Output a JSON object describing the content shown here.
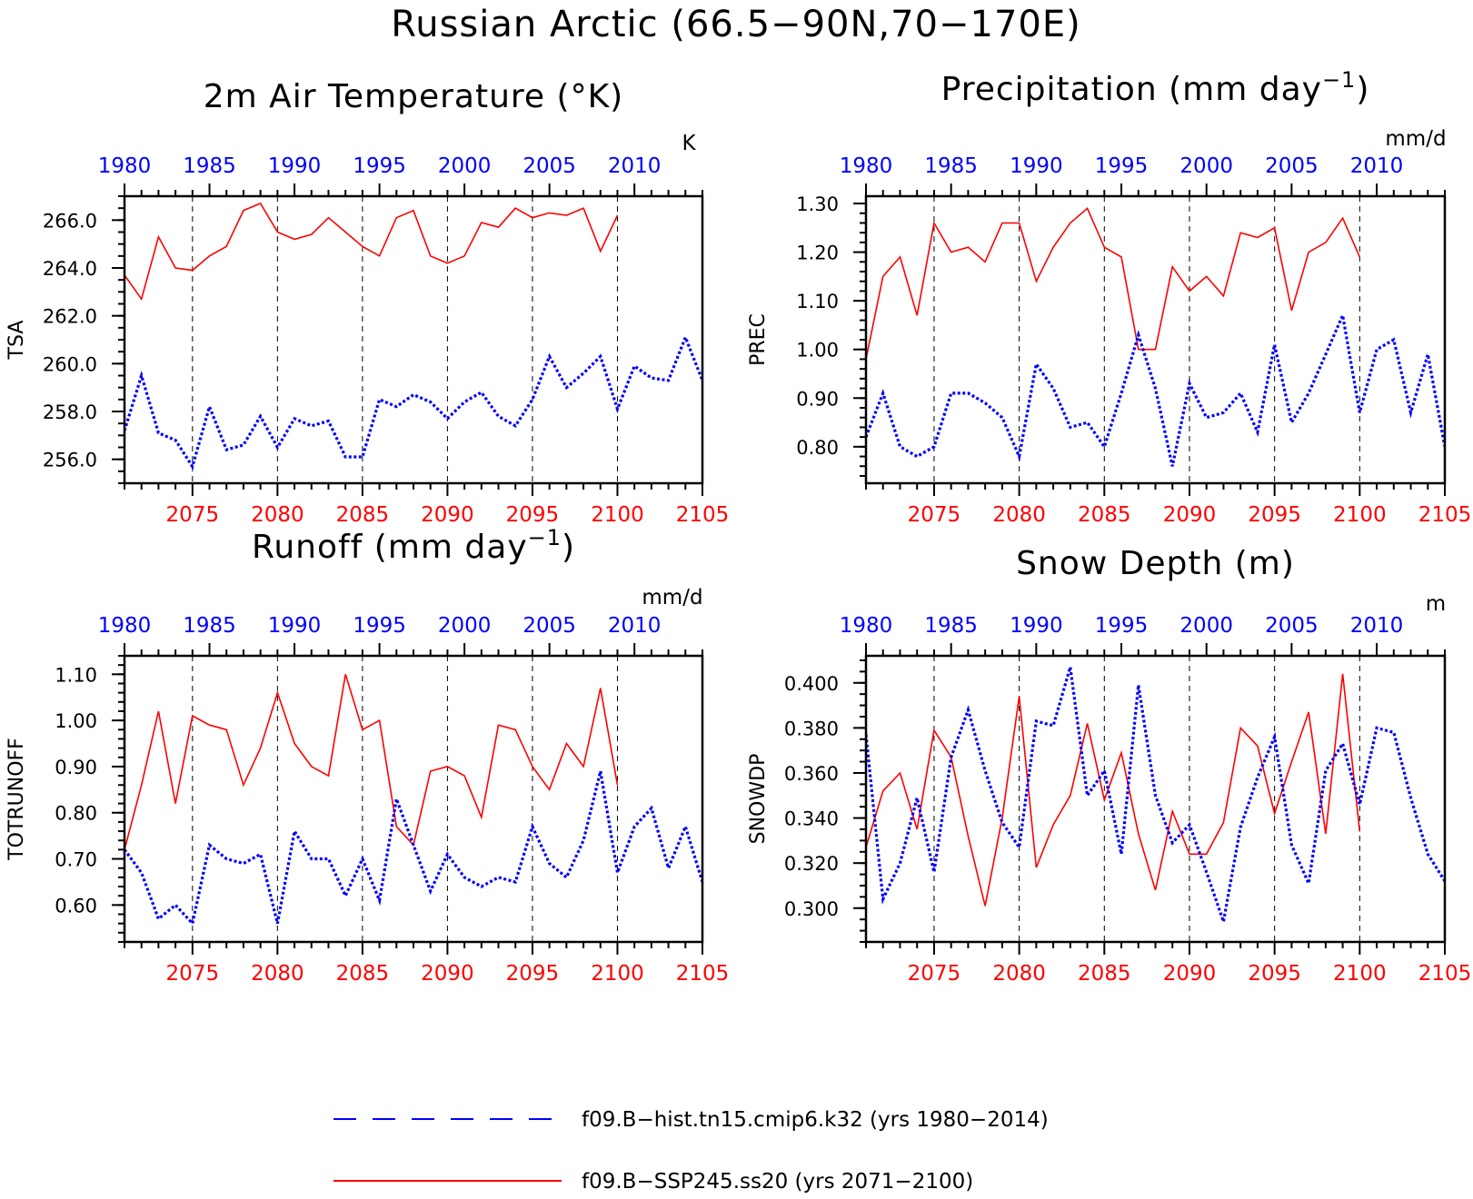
{
  "title": "Russian Arctic (66.5−90N,70−170E)",
  "legend": [
    {
      "label": "f09.B−hist.tn15.cmip6.k32 (yrs 1980−2014)",
      "color": "#0000ff",
      "style": "dashed"
    },
    {
      "label": "f09.B−SSP245.ss20 (yrs 2071−2100)",
      "color": "#ff0000",
      "style": "solid"
    }
  ],
  "colors": {
    "historical": "#0000ff",
    "future": "#ff0000"
  },
  "chart_data": [
    {
      "type": "line",
      "title": "2m Air Temperature (°K)",
      "ylabel": "TSA",
      "units": "K",
      "ylim": [
        255.0,
        267.0
      ],
      "yticks": [
        256.0,
        258.0,
        260.0,
        262.0,
        264.0,
        266.0
      ],
      "ytick_labels": [
        "256.0",
        "258.0",
        "260.0",
        "262.0",
        "264.0",
        "266.0"
      ],
      "minor_step": 0.5,
      "bottom_axis": {
        "range": [
          2071,
          2105
        ],
        "ticks": [
          2075,
          2080,
          2085,
          2090,
          2095,
          2100,
          2105
        ]
      },
      "top_axis": {
        "range": [
          1980,
          2014
        ],
        "ticks": [
          1980,
          1985,
          1990,
          1995,
          2000,
          2005,
          2010
        ]
      },
      "grid_x": [
        2075,
        2080,
        2085,
        2090,
        2095,
        2100
      ],
      "series": [
        {
          "name": "f09.B−SSP245.ss20",
          "axis": "bottom",
          "color": "#ff0000",
          "style": "solid",
          "x": [
            2071,
            2072,
            2073,
            2074,
            2075,
            2076,
            2077,
            2078,
            2079,
            2080,
            2081,
            2082,
            2083,
            2084,
            2085,
            2086,
            2087,
            2088,
            2089,
            2090,
            2091,
            2092,
            2093,
            2094,
            2095,
            2096,
            2097,
            2098,
            2099,
            2100
          ],
          "y": [
            263.7,
            262.7,
            265.3,
            264.0,
            263.9,
            264.5,
            264.9,
            266.4,
            266.7,
            265.5,
            265.2,
            265.4,
            266.1,
            265.5,
            264.9,
            264.5,
            266.1,
            266.4,
            264.5,
            264.2,
            264.5,
            265.9,
            265.7,
            266.5,
            266.1,
            266.3,
            266.2,
            266.5,
            264.7,
            266.2
          ]
        },
        {
          "name": "f09.B−hist.tn15.cmip6.k32",
          "axis": "top",
          "color": "#0000ff",
          "style": "dotted",
          "x": [
            1980,
            1981,
            1982,
            1983,
            1984,
            1985,
            1986,
            1987,
            1988,
            1989,
            1990,
            1991,
            1992,
            1993,
            1994,
            1995,
            1996,
            1997,
            1998,
            1999,
            2000,
            2001,
            2002,
            2003,
            2004,
            2005,
            2006,
            2007,
            2008,
            2009,
            2010,
            2011,
            2012,
            2013,
            2014
          ],
          "y": [
            257.2,
            259.5,
            257.1,
            256.8,
            255.7,
            258.2,
            256.4,
            256.6,
            257.8,
            256.5,
            257.7,
            257.4,
            257.6,
            256.1,
            256.1,
            258.5,
            258.2,
            258.7,
            258.4,
            257.7,
            258.4,
            258.8,
            257.8,
            257.4,
            258.5,
            260.3,
            259.0,
            259.6,
            260.3,
            258.1,
            259.9,
            259.4,
            259.3,
            261.1,
            259.3
          ]
        }
      ]
    },
    {
      "type": "line",
      "title": "Precipitation (mm day⁻¹)",
      "title_main": "Precipitation (mm day",
      "title_sup": "−1",
      "title_end": ")",
      "ylabel": "PREC",
      "units": "mm/d",
      "ylim": [
        0.725,
        1.315
      ],
      "yticks": [
        0.8,
        0.9,
        1.0,
        1.1,
        1.2,
        1.3
      ],
      "ytick_labels": [
        "0.80",
        "0.90",
        "1.00",
        "1.10",
        "1.20",
        "1.30"
      ],
      "minor_step": 0.02,
      "bottom_axis": {
        "range": [
          2071,
          2105
        ],
        "ticks": [
          2075,
          2080,
          2085,
          2090,
          2095,
          2100,
          2105
        ]
      },
      "top_axis": {
        "range": [
          1980,
          2014
        ],
        "ticks": [
          1980,
          1985,
          1990,
          1995,
          2000,
          2005,
          2010
        ]
      },
      "grid_x": [
        2075,
        2080,
        2085,
        2090,
        2095,
        2100
      ],
      "series": [
        {
          "name": "f09.B−SSP245.ss20",
          "axis": "bottom",
          "color": "#ff0000",
          "style": "solid",
          "x": [
            2071,
            2072,
            2073,
            2074,
            2075,
            2076,
            2077,
            2078,
            2079,
            2080,
            2081,
            2082,
            2083,
            2084,
            2085,
            2086,
            2087,
            2088,
            2089,
            2090,
            2091,
            2092,
            2093,
            2094,
            2095,
            2096,
            2097,
            2098,
            2099,
            2100
          ],
          "y": [
            0.98,
            1.15,
            1.19,
            1.07,
            1.26,
            1.2,
            1.21,
            1.18,
            1.26,
            1.26,
            1.14,
            1.21,
            1.26,
            1.29,
            1.21,
            1.19,
            1.0,
            1.0,
            1.17,
            1.12,
            1.15,
            1.11,
            1.24,
            1.23,
            1.25,
            1.08,
            1.2,
            1.22,
            1.27,
            1.19
          ]
        },
        {
          "name": "f09.B−hist.tn15.cmip6.k32",
          "axis": "top",
          "color": "#0000ff",
          "style": "dotted",
          "x": [
            1980,
            1981,
            1982,
            1983,
            1984,
            1985,
            1986,
            1987,
            1988,
            1989,
            1990,
            1991,
            1992,
            1993,
            1994,
            1995,
            1996,
            1997,
            1998,
            1999,
            2000,
            2001,
            2002,
            2003,
            2004,
            2005,
            2006,
            2007,
            2008,
            2009,
            2010,
            2011,
            2012,
            2013,
            2014
          ],
          "y": [
            0.82,
            0.91,
            0.8,
            0.78,
            0.8,
            0.91,
            0.91,
            0.89,
            0.86,
            0.78,
            0.97,
            0.92,
            0.84,
            0.85,
            0.8,
            0.91,
            1.03,
            0.92,
            0.76,
            0.93,
            0.86,
            0.87,
            0.91,
            0.83,
            1.01,
            0.85,
            0.91,
            0.99,
            1.07,
            0.87,
            1.0,
            1.02,
            0.87,
            0.99,
            0.8
          ]
        }
      ]
    },
    {
      "type": "line",
      "title": "Runoff (mm day⁻¹)",
      "title_main": "Runoff (mm day",
      "title_sup": "−1",
      "title_end": ")",
      "ylabel": "TOTRUNOFF",
      "units": "mm/d",
      "ylim": [
        0.52,
        1.14
      ],
      "yticks": [
        0.6,
        0.7,
        0.8,
        0.9,
        1.0,
        1.1
      ],
      "ytick_labels": [
        "0.60",
        "0.70",
        "0.80",
        "0.90",
        "1.00",
        "1.10"
      ],
      "minor_step": 0.02,
      "bottom_axis": {
        "range": [
          2071,
          2105
        ],
        "ticks": [
          2075,
          2080,
          2085,
          2090,
          2095,
          2100,
          2105
        ]
      },
      "top_axis": {
        "range": [
          1980,
          2014
        ],
        "ticks": [
          1980,
          1985,
          1990,
          1995,
          2000,
          2005,
          2010
        ]
      },
      "grid_x": [
        2075,
        2080,
        2085,
        2090,
        2095,
        2100
      ],
      "series": [
        {
          "name": "f09.B−SSP245.ss20",
          "axis": "bottom",
          "color": "#ff0000",
          "style": "solid",
          "x": [
            2071,
            2072,
            2073,
            2074,
            2075,
            2076,
            2077,
            2078,
            2079,
            2080,
            2081,
            2082,
            2083,
            2084,
            2085,
            2086,
            2087,
            2088,
            2089,
            2090,
            2091,
            2092,
            2093,
            2094,
            2095,
            2096,
            2097,
            2098,
            2099,
            2100
          ],
          "y": [
            0.72,
            0.86,
            1.02,
            0.82,
            1.01,
            0.99,
            0.98,
            0.86,
            0.94,
            1.06,
            0.95,
            0.9,
            0.88,
            1.1,
            0.98,
            1.0,
            0.77,
            0.73,
            0.89,
            0.9,
            0.88,
            0.79,
            0.99,
            0.98,
            0.9,
            0.85,
            0.95,
            0.9,
            1.07,
            0.86
          ]
        },
        {
          "name": "f09.B−hist.tn15.cmip6.k32",
          "axis": "top",
          "color": "#0000ff",
          "style": "dotted",
          "x": [
            1980,
            1981,
            1982,
            1983,
            1984,
            1985,
            1986,
            1987,
            1988,
            1989,
            1990,
            1991,
            1992,
            1993,
            1994,
            1995,
            1996,
            1997,
            1998,
            1999,
            2000,
            2001,
            2002,
            2003,
            2004,
            2005,
            2006,
            2007,
            2008,
            2009,
            2010,
            2011,
            2012,
            2013,
            2014
          ],
          "y": [
            0.72,
            0.67,
            0.57,
            0.6,
            0.56,
            0.73,
            0.7,
            0.69,
            0.71,
            0.56,
            0.76,
            0.7,
            0.7,
            0.62,
            0.7,
            0.61,
            0.83,
            0.73,
            0.63,
            0.71,
            0.66,
            0.64,
            0.66,
            0.65,
            0.77,
            0.69,
            0.66,
            0.74,
            0.89,
            0.67,
            0.77,
            0.81,
            0.68,
            0.77,
            0.65
          ]
        }
      ]
    },
    {
      "type": "line",
      "title": "Snow Depth (m)",
      "ylabel": "SNOWDP",
      "units": "m",
      "ylim": [
        0.285,
        0.412
      ],
      "yticks": [
        0.3,
        0.32,
        0.34,
        0.36,
        0.38,
        0.4
      ],
      "ytick_labels": [
        "0.300",
        "0.320",
        "0.340",
        "0.360",
        "0.380",
        "0.400"
      ],
      "minor_step": 0.005,
      "bottom_axis": {
        "range": [
          2071,
          2105
        ],
        "ticks": [
          2075,
          2080,
          2085,
          2090,
          2095,
          2100,
          2105
        ]
      },
      "top_axis": {
        "range": [
          1980,
          2014
        ],
        "ticks": [
          1980,
          1985,
          1990,
          1995,
          2000,
          2005,
          2010
        ]
      },
      "grid_x": [
        2075,
        2080,
        2085,
        2090,
        2095,
        2100
      ],
      "series": [
        {
          "name": "f09.B−SSP245.ss20",
          "axis": "bottom",
          "color": "#ff0000",
          "style": "solid",
          "x": [
            2071,
            2072,
            2073,
            2074,
            2075,
            2076,
            2077,
            2078,
            2079,
            2080,
            2081,
            2082,
            2083,
            2084,
            2085,
            2086,
            2087,
            2088,
            2089,
            2090,
            2091,
            2092,
            2093,
            2094,
            2095,
            2096,
            2097,
            2098,
            2099,
            2100
          ],
          "y": [
            0.327,
            0.352,
            0.36,
            0.335,
            0.379,
            0.367,
            0.332,
            0.301,
            0.34,
            0.394,
            0.318,
            0.337,
            0.35,
            0.382,
            0.348,
            0.369,
            0.333,
            0.308,
            0.343,
            0.324,
            0.324,
            0.338,
            0.38,
            0.372,
            0.342,
            0.365,
            0.387,
            0.333,
            0.404,
            0.334
          ]
        },
        {
          "name": "f09.B−hist.tn15.cmip6.k32",
          "axis": "top",
          "color": "#0000ff",
          "style": "dotted",
          "x": [
            1980,
            1981,
            1982,
            1983,
            1984,
            1985,
            1986,
            1987,
            1988,
            1989,
            1990,
            1991,
            1992,
            1993,
            1994,
            1995,
            1996,
            1997,
            1998,
            1999,
            2000,
            2001,
            2002,
            2003,
            2004,
            2005,
            2006,
            2007,
            2008,
            2009,
            2010,
            2011,
            2012,
            2013,
            2014
          ],
          "y": [
            0.377,
            0.304,
            0.32,
            0.349,
            0.316,
            0.367,
            0.388,
            0.361,
            0.338,
            0.327,
            0.383,
            0.381,
            0.407,
            0.35,
            0.361,
            0.324,
            0.399,
            0.35,
            0.329,
            0.337,
            0.316,
            0.294,
            0.336,
            0.358,
            0.376,
            0.328,
            0.311,
            0.361,
            0.373,
            0.346,
            0.38,
            0.378,
            0.349,
            0.324,
            0.312
          ]
        }
      ]
    }
  ]
}
